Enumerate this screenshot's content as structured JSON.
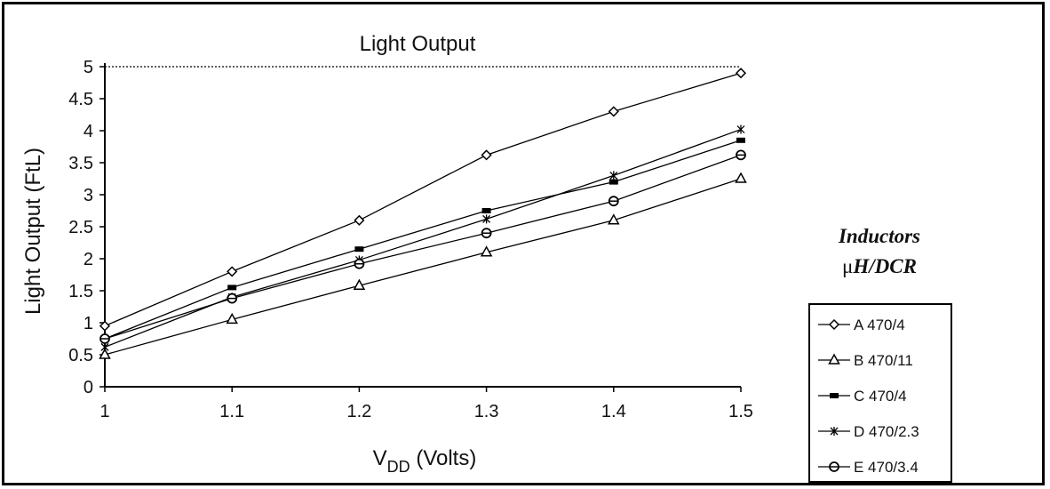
{
  "chart_data": {
    "type": "line",
    "title": "Light Output",
    "ylabel": "Light Output (FtL)",
    "xlabel_main": "V",
    "xlabel_sub": "DD",
    "xlabel_rest": " (Volts)",
    "x": [
      1,
      1.1,
      1.2,
      1.3,
      1.4,
      1.5
    ],
    "x_tick_labels": [
      "1",
      "1.1",
      "1.2",
      "1.3",
      "1.4",
      "1.5"
    ],
    "y_tick_labels": [
      "0",
      "0.5",
      "1",
      "1.5",
      "2",
      "2.5",
      "3",
      "3.5",
      "4",
      "4.5",
      "5"
    ],
    "xlim": [
      1,
      1.5
    ],
    "ylim": [
      0,
      5
    ],
    "grid": false,
    "legend_title_line1": "Inductors",
    "legend_title_mu": "μ",
    "legend_title_rest": "H/DCR",
    "legend_position": "right",
    "series": [
      {
        "name": "A 470/4",
        "marker": "diamond",
        "values": [
          0.95,
          1.8,
          2.6,
          3.62,
          4.3,
          4.9
        ]
      },
      {
        "name": "B 470/11",
        "marker": "triangle",
        "values": [
          0.5,
          1.05,
          1.58,
          2.1,
          2.6,
          3.25
        ]
      },
      {
        "name": "C 470/4",
        "marker": "square",
        "values": [
          0.75,
          1.55,
          2.15,
          2.75,
          3.2,
          3.85
        ]
      },
      {
        "name": "D 470/2.3",
        "marker": "star",
        "values": [
          0.62,
          1.4,
          1.98,
          2.62,
          3.3,
          4.02
        ]
      },
      {
        "name": "E 470/3.4",
        "marker": "circle",
        "values": [
          0.75,
          1.38,
          1.92,
          2.4,
          2.9,
          3.62
        ]
      }
    ]
  }
}
